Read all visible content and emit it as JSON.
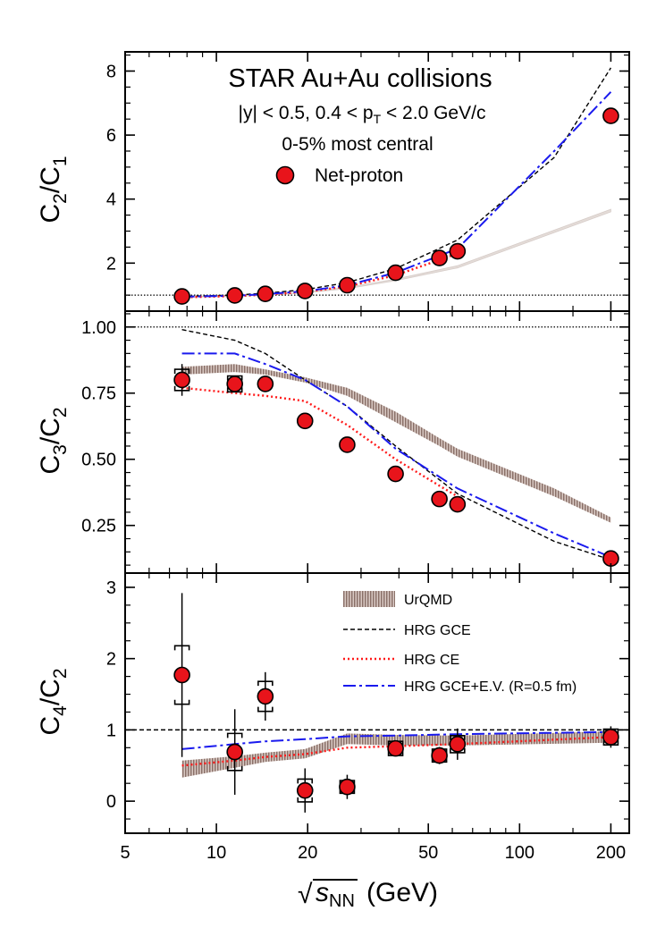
{
  "chart_data": {
    "type": "scatter",
    "x_axis": {
      "label": "(GeV)",
      "sqrt_symbol": "√",
      "label_var": "s",
      "label_sub": "NN",
      "scale": "log",
      "xlim": [
        5,
        230
      ],
      "ticks": [
        5,
        10,
        20,
        50,
        100,
        200
      ],
      "tick_labels": [
        "5",
        "10",
        "20",
        "50",
        "100",
        "200"
      ]
    },
    "annotations": {
      "title": "STAR Au+Au collisions",
      "rap_cut": "|y| < 0.5, 0.4 < p",
      "rap_sub": "T",
      "rap_tail": " < 2.0 GeV/c",
      "centrality": "0-5% most central",
      "net_proton_label": "Net-proton"
    },
    "legend_entries": [
      {
        "key": "urqmd",
        "label": "UrQMD"
      },
      {
        "key": "hrg_gce",
        "label": "HRG  GCE"
      },
      {
        "key": "hrg_ce",
        "label": "HRG  CE"
      },
      {
        "key": "hrg_ev",
        "label": "HRG  GCE+E.V. (R=0.5 fm)"
      }
    ],
    "colors": {
      "marker": "#e8141b",
      "urqmd": "#a78f85",
      "hrg_gce": "#000000",
      "hrg_ce": "#ff1a1a",
      "hrg_ev": "#1a1aee"
    },
    "panels": [
      {
        "id": "c2c1",
        "ylabel_main": "C",
        "ylabel_sub1": "2",
        "ylabel_sub2": "1",
        "ylim": [
          0.5,
          8.6
        ],
        "yticks": [
          2,
          4,
          6,
          8
        ],
        "ytick_labels": [
          "2",
          "4",
          "6",
          "8"
        ],
        "ref_line": 1.0,
        "data": {
          "x": [
            7.7,
            11.5,
            14.5,
            19.6,
            27,
            39,
            54.4,
            62.4,
            200
          ],
          "y": [
            0.96,
            0.99,
            1.04,
            1.13,
            1.31,
            1.7,
            2.16,
            2.37,
            6.6
          ],
          "err": [
            0.02,
            0.02,
            0.02,
            0.02,
            0.02,
            0.02,
            0.02,
            0.02,
            0.02
          ]
        },
        "models": {
          "urqmd": {
            "x": [
              7.7,
              11.5,
              14.5,
              19.6,
              27,
              39,
              62.4,
              200
            ],
            "lo": [
              0.93,
              0.96,
              1.0,
              1.07,
              1.2,
              1.45,
              1.85,
              3.6
            ],
            "hi": [
              0.95,
              0.99,
              1.03,
              1.1,
              1.24,
              1.5,
              1.92,
              3.68
            ]
          },
          "hrg_gce": {
            "x": [
              7.7,
              11.5,
              14.5,
              19.6,
              27,
              39,
              62.4,
              130,
              200
            ],
            "y": [
              0.96,
              1.0,
              1.06,
              1.17,
              1.39,
              1.83,
              2.72,
              5.3,
              8.1
            ]
          },
          "hrg_ce": {
            "x": [
              7.7,
              11.5,
              14.5,
              19.6,
              27,
              39,
              62.4
            ],
            "y": [
              0.93,
              0.97,
              1.01,
              1.1,
              1.27,
              1.62,
              2.3
            ]
          },
          "hrg_ev": {
            "x": [
              7.7,
              11.5,
              14.5,
              19.6,
              27,
              39,
              62.4,
              130,
              200
            ],
            "y": [
              0.95,
              0.98,
              1.03,
              1.12,
              1.31,
              1.7,
              2.45,
              5.5,
              7.35
            ]
          }
        }
      },
      {
        "id": "c3c2",
        "ylabel_main": "C",
        "ylabel_sub1": "3",
        "ylabel_sub2": "2",
        "ylim": [
          0.07,
          1.06
        ],
        "yticks": [
          0.25,
          0.5,
          0.75,
          1.0
        ],
        "ytick_labels": [
          "0.25",
          "0.50",
          "0.75",
          "1.00"
        ],
        "ref_line": 1.0,
        "data": {
          "x": [
            7.7,
            11.5,
            14.5,
            19.6,
            27,
            39,
            54.4,
            62.4,
            200
          ],
          "y": [
            0.8,
            0.785,
            0.785,
            0.645,
            0.555,
            0.445,
            0.35,
            0.33,
            0.125
          ],
          "err": [
            0.06,
            0.03,
            0.015,
            0.015,
            0.015,
            0.015,
            0.015,
            0.015,
            0.01
          ],
          "sys": [
            0.04,
            0.03,
            0.0,
            0.0,
            0.0,
            0.0,
            0.0,
            0.0,
            0.0
          ]
        },
        "models": {
          "urqmd": {
            "x": [
              7.7,
              11.5,
              14.5,
              19.6,
              27,
              39,
              54.4,
              62.4,
              130,
              200
            ],
            "lo": [
              0.82,
              0.83,
              0.82,
              0.79,
              0.74,
              0.64,
              0.55,
              0.51,
              0.36,
              0.26
            ],
            "hi": [
              0.85,
              0.86,
              0.84,
              0.81,
              0.77,
              0.68,
              0.58,
              0.54,
              0.39,
              0.28
            ]
          },
          "hrg_gce": {
            "x": [
              7.7,
              11.5,
              14.5,
              19.6,
              27,
              39,
              62.4,
              130,
              200
            ],
            "y": [
              0.99,
              0.95,
              0.9,
              0.8,
              0.7,
              0.55,
              0.37,
              0.19,
              0.12
            ]
          },
          "hrg_ce": {
            "x": [
              7.7,
              11.5,
              14.5,
              19.6,
              27,
              39,
              54.4,
              62.4
            ],
            "y": [
              0.77,
              0.75,
              0.74,
              0.72,
              0.63,
              0.5,
              0.4,
              0.36
            ]
          },
          "hrg_ev": {
            "x": [
              7.7,
              11.5,
              14.5,
              19.6,
              27,
              39,
              62.4,
              130,
              200
            ],
            "y": [
              0.9,
              0.9,
              0.86,
              0.8,
              0.7,
              0.54,
              0.39,
              0.22,
              0.13
            ]
          }
        }
      },
      {
        "id": "c4c2",
        "ylabel_main": "C",
        "ylabel_sub1": "4",
        "ylabel_sub2": "2",
        "ylim": [
          -0.45,
          3.2
        ],
        "yticks": [
          0,
          1,
          2,
          3
        ],
        "ytick_labels": [
          "0",
          "1",
          "2",
          "3"
        ],
        "ref_line": 1.0,
        "data": {
          "x": [
            7.7,
            11.5,
            14.5,
            19.6,
            27,
            39,
            54.4,
            62.4,
            200
          ],
          "y": [
            1.77,
            0.69,
            1.47,
            0.15,
            0.2,
            0.74,
            0.64,
            0.8,
            0.9
          ],
          "err": [
            1.15,
            0.6,
            0.34,
            0.31,
            0.17,
            0.09,
            0.12,
            0.22,
            0.15
          ],
          "sys": [
            0.41,
            0.26,
            0.21,
            0.16,
            0.09,
            0.1,
            0.09,
            0.12,
            0.11
          ]
        },
        "models": {
          "urqmd": {
            "x": [
              7.7,
              11.5,
              14.5,
              19.6,
              27,
              39,
              62.4,
              200
            ],
            "lo": [
              0.33,
              0.47,
              0.55,
              0.6,
              0.8,
              0.78,
              0.78,
              0.82
            ],
            "hi": [
              0.57,
              0.63,
              0.68,
              0.73,
              0.95,
              0.93,
              0.92,
              0.98
            ]
          },
          "hrg_gce": {
            "x": [
              5,
              230
            ],
            "y": [
              1.0,
              1.0
            ]
          },
          "hrg_ce": {
            "x": [
              7.7,
              11.5,
              14.5,
              19.6,
              27,
              39,
              62.4,
              200
            ],
            "y": [
              0.5,
              0.57,
              0.62,
              0.66,
              0.75,
              0.77,
              0.8,
              0.9
            ]
          },
          "hrg_ev": {
            "x": [
              7.7,
              11.5,
              14.5,
              19.6,
              27,
              39,
              62.4,
              200
            ],
            "y": [
              0.73,
              0.8,
              0.84,
              0.87,
              0.91,
              0.92,
              0.94,
              0.97
            ]
          }
        }
      }
    ]
  }
}
